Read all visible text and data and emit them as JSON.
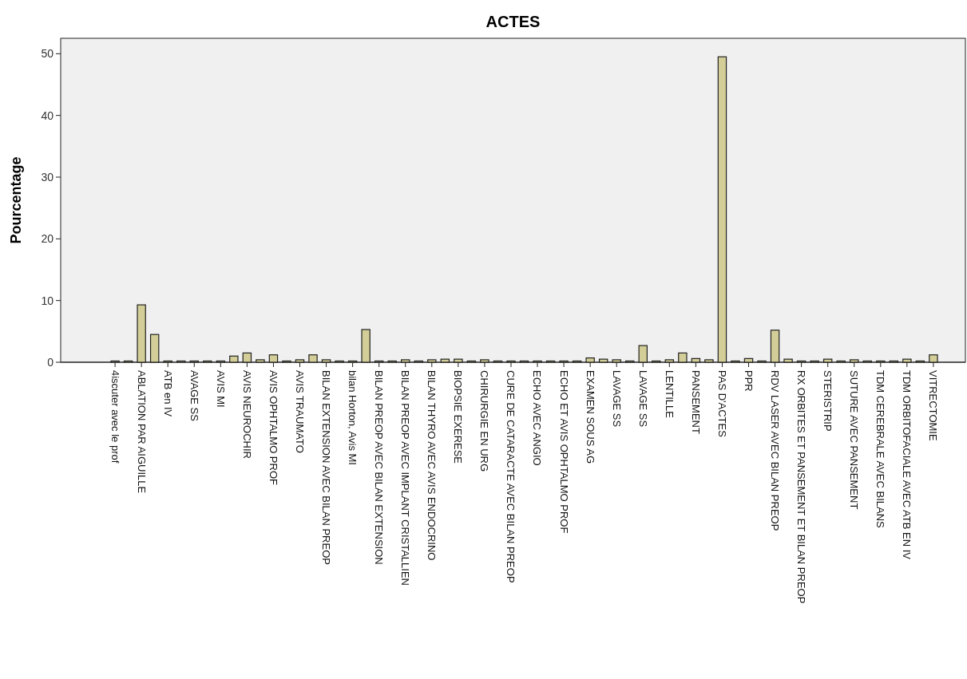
{
  "chart_data": {
    "type": "bar",
    "title": "ACTES",
    "ylabel": "Pourcentage",
    "categories": [
      "4iscuter avec le prof",
      null,
      "ABLATION PAR AIGUILLE",
      null,
      "ATB en IV",
      null,
      "AVAGE SS",
      null,
      "AVIS MI",
      null,
      "AVIS NEUROCHIR",
      null,
      "AVIS OPHTALMO PROF",
      null,
      "AVIS TRAUMATO",
      null,
      "BILAN EXTENSION AVEC BILAN PREOP",
      null,
      "bilan Horton, Avis MI",
      null,
      "BILAN PREOP AVEC BILAN EXTENSION",
      null,
      "BILAN PREOP AVEC IMPLANT CRISTALLIEN",
      null,
      "BILAN THYRO AVEC AVIS ENDOCRINO",
      null,
      "BIOPSIE EXERESE",
      null,
      "CHIRURGIE EN URG",
      null,
      "CURE DE CATARACTE AVEC BILAN PREOP",
      null,
      "ECHO AVEC ANGIO",
      null,
      "ECHO ET AVIS OPHTALMO PROF",
      null,
      "EXAMEN SOUS AG",
      null,
      "LAVAGE  SS",
      null,
      "LAVAGE SS",
      null,
      "LENTILLE",
      null,
      "PANSEMENT",
      null,
      "PAS D'ACTES",
      null,
      "PPR",
      null,
      "RDV LASER AVEC BILAN PREOP",
      null,
      "RX ORBITES ET PANSEMENT ET BILAN PREOP",
      null,
      "STERISTRIP",
      null,
      "SUTURE AVEC PANSEMENT",
      null,
      "TDM CEREBRALE AVEC BILANS",
      null,
      "TDM ORBITOFACIALE AVEC ATB EN IV",
      null,
      "VITRECTOMIE"
    ],
    "values": [
      0.2,
      0.2,
      9.3,
      4.5,
      0.2,
      0.2,
      0.2,
      0.2,
      0.2,
      1.0,
      1.5,
      0.4,
      1.2,
      0.2,
      0.4,
      1.2,
      0.4,
      0.2,
      0.2,
      5.3,
      0.2,
      0.2,
      0.4,
      0.2,
      0.4,
      0.5,
      0.5,
      0.2,
      0.4,
      0.2,
      0.2,
      0.2,
      0.2,
      0.2,
      0.2,
      0.2,
      0.7,
      0.5,
      0.4,
      0.2,
      2.7,
      0.2,
      0.4,
      1.5,
      0.6,
      0.4,
      49.5,
      0.2,
      0.6,
      0.2,
      5.2,
      0.5,
      0.2,
      0.2,
      0.5,
      0.2,
      0.4,
      0.2,
      0.2,
      0.2,
      0.5,
      0.2,
      1.2
    ],
    "color": "#d3ce97",
    "ylim": [
      0,
      52.5
    ],
    "yticks": [
      0,
      10,
      20,
      30,
      40,
      50
    ],
    "grid": false
  }
}
